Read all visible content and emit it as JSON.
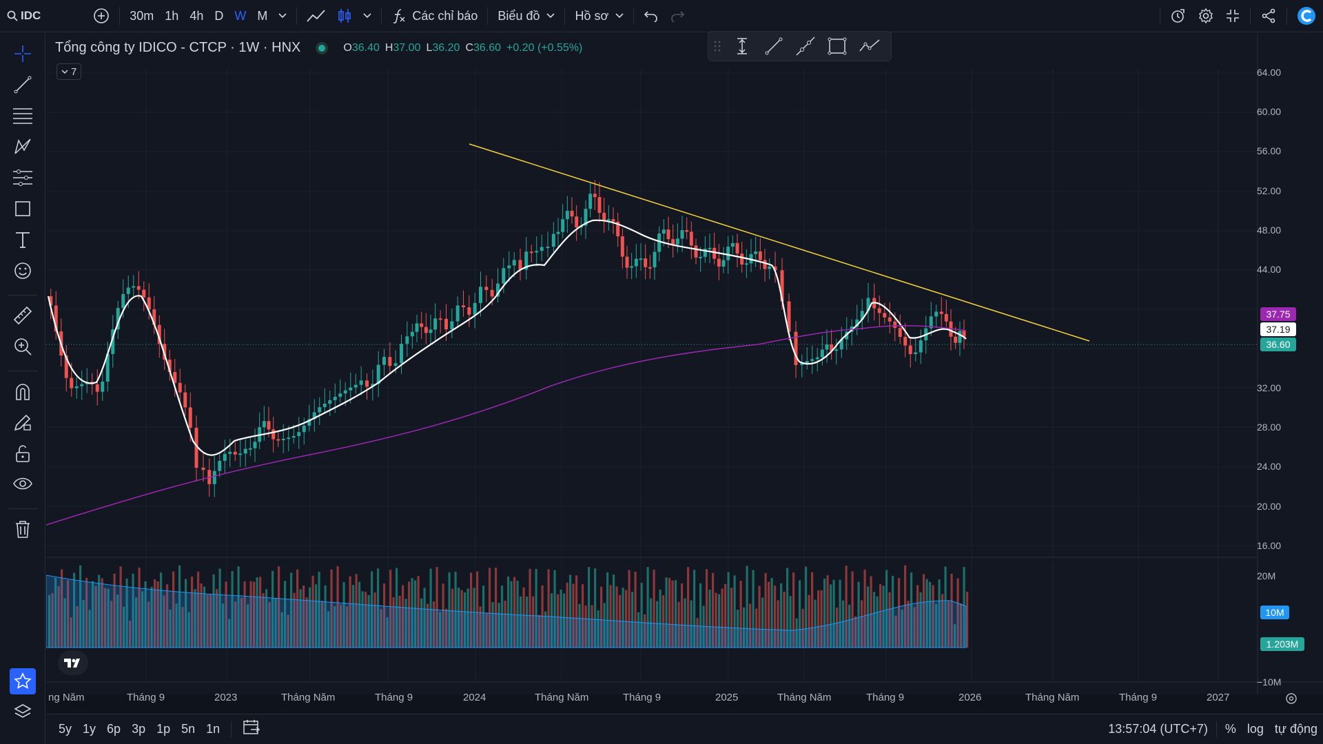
{
  "topbar": {
    "symbol": "IDC",
    "intervals": [
      "30m",
      "1h",
      "4h",
      "D",
      "W",
      "M"
    ],
    "active_interval": "W",
    "indicators_label": "Các chỉ báo",
    "chart_label": "Biểu đồ",
    "profile_label": "Hồ sơ"
  },
  "legend": {
    "title": "Tổng công ty IDICO - CTCP · 1W · HNX",
    "o_key": "O",
    "o": "36.40",
    "h_key": "H",
    "h": "37.00",
    "l_key": "L",
    "l": "36.20",
    "c_key": "C",
    "c": "36.60",
    "change": "+0.20 (+0.55%)",
    "indicator_count": "7"
  },
  "price_axis": [
    "64.00",
    "60.00",
    "56.00",
    "52.00",
    "48.00",
    "44.00",
    "32.00",
    "28.00",
    "24.00",
    "20.00",
    "16.00"
  ],
  "price_tags": {
    "ma_long": "37.75",
    "ma_short": "37.19",
    "last": "36.60"
  },
  "volume_axis": [
    "20M",
    "−10M"
  ],
  "volume_tags": {
    "ma": "10M",
    "last": "1.203M"
  },
  "time_axis": [
    "ng Năm",
    "Tháng 9",
    "2023",
    "Tháng Năm",
    "Tháng 9",
    "2024",
    "Tháng Năm",
    "Tháng 9",
    "2025",
    "Tháng Năm",
    "Tháng 9",
    "2026",
    "Tháng Năm",
    "Tháng 9",
    "2027"
  ],
  "bottom": {
    "ranges": [
      "5y",
      "1y",
      "6p",
      "3p",
      "1p",
      "5n",
      "1n"
    ],
    "clock": "13:57:04 (UTC+7)",
    "percent": "%",
    "log": "log",
    "auto": "tự động"
  },
  "colors": {
    "up": "#26a69a",
    "down": "#ef5350",
    "trend": "#f5d33b",
    "ma_long": "#9c27b0",
    "ma_short": "#ffffff",
    "accent": "#2962ff"
  }
}
